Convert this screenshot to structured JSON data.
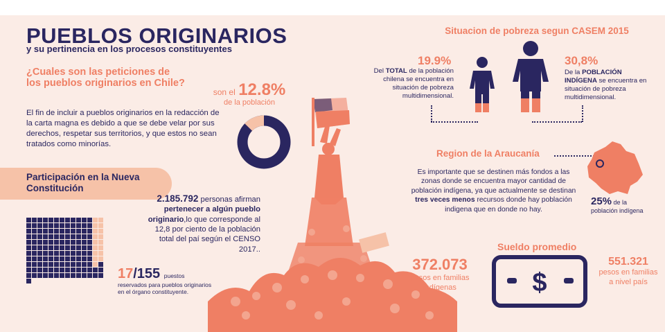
{
  "header": {
    "title": "PUEBLOS ORIGINARIOS",
    "subtitle": "y su pertinencia en los procesos constituyentes"
  },
  "question": {
    "text": "¿Cuales son las peticiones de los pueblos originarios en Chile?",
    "body": "El fin de incluir a pueblos originarios en la redacción de la carta magna es debido a que se debe velar por sus derechos, respetar sus territorios, y que estos no sean tratados como minorías."
  },
  "percentage": {
    "prefix": "son el",
    "value": "12.8%",
    "suffix": "de la población",
    "fraction": 0.128
  },
  "participation": {
    "label": "Participación en la Nueva Constitución",
    "seats_reserved": 17,
    "seats_total": 155,
    "seats_num": "17",
    "seats_den": "/155",
    "seats_word": "puestos",
    "seats_text": "reservados para pueblos originarios en el órgano constituyente."
  },
  "population_stat": {
    "count": "2.185.792",
    "word": "personas",
    "line1": "afirman",
    "bold": "pertenecer a algún pueblo originario",
    "rest": ",lo que corresponde al 12,8 por ciento de la población total del paí según el CENSO 2017.."
  },
  "poverty": {
    "title": "Situacion de pobreza segun CASEM 2015",
    "left_value": "19.9%",
    "left_pre": "Del",
    "left_bold": "TOTAL",
    "left_rest": "de la población chilena se encuentra en situación de pobreza multidimensional.",
    "left_fraction": 0.199,
    "right_value": "30,8%",
    "right_pre": "De la",
    "right_bold": "POBLACIÓN INDÍGENA",
    "right_rest": "se encuentra en situación de pobreza multidimensional.",
    "right_fraction": 0.308
  },
  "region": {
    "title": "Region de la Araucanía",
    "text_a": "Es importante que se destinen más fondos a las zonas donde se encuentra mayor cantidad de población indígena, ya que actualmente se destinan",
    "text_bold": "tres veces menos",
    "text_b": "recursos donde hay población indigena que en donde no hay.",
    "pct_value": "25%",
    "pct_suffix": "de la",
    "pct_label": "población indígena"
  },
  "salary": {
    "title": "Sueldo promedio",
    "left_value": "372.073",
    "left_label": "pesos en familias indígenas",
    "right_value": "551.321",
    "right_label": "pesos en familias a nivel país",
    "dollar": "$"
  },
  "colors": {
    "navy": "#2a2660",
    "salmon": "#ef7f64",
    "peach": "#f6c2a8",
    "background": "#fbece6"
  }
}
